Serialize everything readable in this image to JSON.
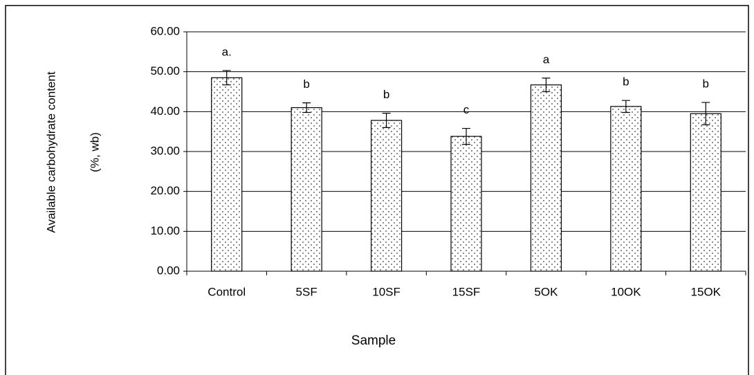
{
  "chart_data": {
    "type": "bar",
    "ylabel_lines": [
      "Available carbohydrate content",
      "(%, wb)"
    ],
    "xlabel": "Sample",
    "categories": [
      "Control",
      "5SF",
      "10SF",
      "15SF",
      "5OK",
      "10OK",
      "15OK"
    ],
    "values": [
      48.5,
      41.0,
      37.8,
      33.8,
      46.7,
      41.3,
      39.5
    ],
    "errors": [
      1.8,
      1.2,
      1.8,
      2.0,
      1.7,
      1.5,
      2.8
    ],
    "annotations": [
      "a.",
      "b",
      "b",
      "c",
      "a",
      "b",
      "b"
    ],
    "ylim": [
      0,
      60
    ],
    "yticks": [
      {
        "value": 0,
        "label": "0.00"
      },
      {
        "value": 10,
        "label": "10.00"
      },
      {
        "value": 20,
        "label": "20.00"
      },
      {
        "value": 30,
        "label": "30.00"
      },
      {
        "value": 40,
        "label": "40.00"
      },
      {
        "value": 50,
        "label": "50.00"
      },
      {
        "value": 60,
        "label": "60.00"
      }
    ],
    "grid": true
  }
}
